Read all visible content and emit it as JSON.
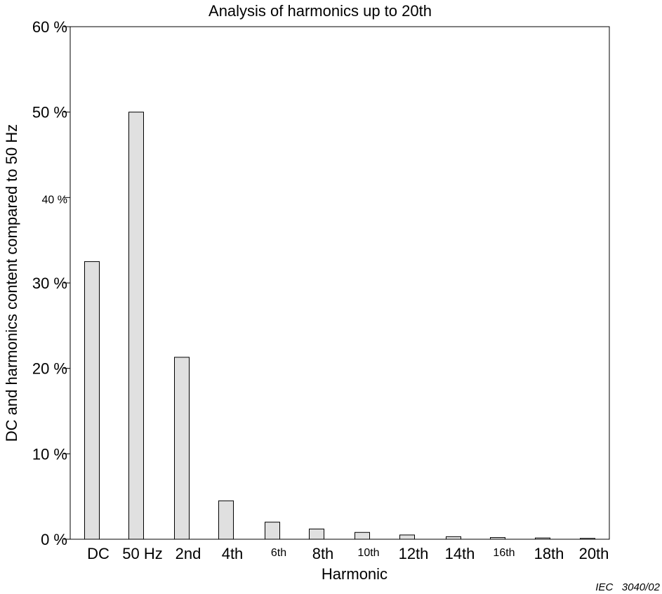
{
  "chart_data": {
    "type": "bar",
    "title": "Analysis of harmonics up to 20th",
    "xlabel": "Harmonic",
    "ylabel": "DC and harmonics content compared to 50 Hz",
    "ylim": [
      0,
      60
    ],
    "y_ticks": [
      "0 %",
      "10 %",
      "20 %",
      "30 %",
      "40 %",
      "50 %",
      "60 %"
    ],
    "categories": [
      "DC",
      "50 Hz",
      "2nd",
      "4th",
      "6th",
      "8th",
      "10th",
      "12th",
      "14th",
      "16th",
      "18th",
      "20th"
    ],
    "values": [
      32.5,
      50,
      21.3,
      4.5,
      2.0,
      1.2,
      0.8,
      0.5,
      0.3,
      0.2,
      0.15,
      0.1
    ],
    "grid": false,
    "legend": "none",
    "bar_color": "#e0e0e0",
    "bar_stroke": "#000000"
  },
  "figure_id": "IEC   3040/02"
}
